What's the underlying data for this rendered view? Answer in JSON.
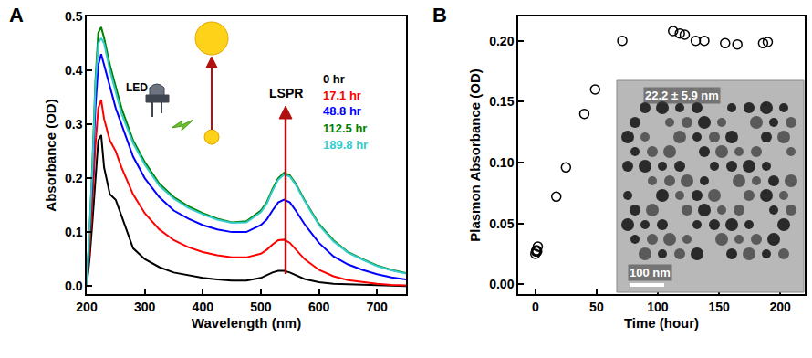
{
  "chart_data": [
    {
      "type": "line",
      "panel": "A",
      "x_label": "Wavelength (nm)",
      "y_label": "Absorbance (OD)",
      "x": [
        200,
        205,
        210,
        215,
        220,
        225,
        230,
        240,
        250,
        260,
        280,
        300,
        325,
        350,
        375,
        400,
        425,
        450,
        475,
        500,
        510,
        520,
        530,
        540,
        550,
        560,
        575,
        600,
        625,
        650,
        675,
        700,
        725,
        750
      ],
      "series": [
        {
          "name": "0 hr",
          "color": "#000000",
          "values": [
            0.0,
            0.05,
            0.12,
            0.2,
            0.27,
            0.28,
            0.22,
            0.17,
            0.16,
            0.13,
            0.07,
            0.05,
            0.035,
            0.025,
            0.02,
            0.015,
            0.012,
            0.01,
            0.01,
            0.015,
            0.02,
            0.025,
            0.028,
            0.028,
            0.025,
            0.02,
            0.013,
            0.007,
            0.004,
            0.003,
            0.002,
            0.001,
            0.001,
            0.0
          ]
        },
        {
          "name": "17.1 hr",
          "color": "#ff0000",
          "values": [
            0.0,
            0.07,
            0.16,
            0.26,
            0.33,
            0.345,
            0.31,
            0.27,
            0.25,
            0.22,
            0.17,
            0.135,
            0.105,
            0.085,
            0.072,
            0.063,
            0.057,
            0.053,
            0.053,
            0.06,
            0.067,
            0.077,
            0.085,
            0.086,
            0.08,
            0.068,
            0.05,
            0.03,
            0.018,
            0.011,
            0.007,
            0.004,
            0.002,
            0.001
          ]
        },
        {
          "name": "48.8 hr",
          "color": "#0000ff",
          "values": [
            0.0,
            0.09,
            0.2,
            0.33,
            0.41,
            0.43,
            0.41,
            0.37,
            0.33,
            0.3,
            0.24,
            0.2,
            0.165,
            0.14,
            0.125,
            0.113,
            0.105,
            0.1,
            0.1,
            0.113,
            0.123,
            0.14,
            0.155,
            0.16,
            0.155,
            0.14,
            0.115,
            0.08,
            0.055,
            0.04,
            0.03,
            0.022,
            0.016,
            0.012
          ]
        },
        {
          "name": "112.5 hr",
          "color": "#008000",
          "values": [
            0.0,
            0.1,
            0.23,
            0.38,
            0.47,
            0.48,
            0.46,
            0.41,
            0.37,
            0.33,
            0.27,
            0.23,
            0.19,
            0.165,
            0.148,
            0.135,
            0.125,
            0.118,
            0.12,
            0.14,
            0.155,
            0.18,
            0.2,
            0.21,
            0.205,
            0.19,
            0.16,
            0.115,
            0.085,
            0.063,
            0.05,
            0.038,
            0.03,
            0.024
          ]
        },
        {
          "name": "189.8 hr",
          "color": "#33cccc",
          "values": [
            0.0,
            0.1,
            0.22,
            0.37,
            0.45,
            0.46,
            0.45,
            0.4,
            0.36,
            0.32,
            0.265,
            0.225,
            0.186,
            0.162,
            0.145,
            0.133,
            0.123,
            0.117,
            0.118,
            0.137,
            0.152,
            0.177,
            0.197,
            0.207,
            0.203,
            0.188,
            0.158,
            0.113,
            0.083,
            0.062,
            0.049,
            0.037,
            0.029,
            0.023
          ]
        }
      ],
      "xlim": [
        200,
        750
      ],
      "ylim": [
        -0.015,
        0.5
      ],
      "xticks": [
        200,
        300,
        400,
        500,
        600,
        700
      ],
      "yticks": [
        {
          "value": 0,
          "label": "0.0"
        },
        0.1,
        0.2,
        0.3,
        0.4,
        0.5
      ],
      "annotations": [
        "LSPR",
        "LED"
      ]
    },
    {
      "type": "scatter",
      "panel": "B",
      "x_label": "Time (hour)",
      "y_label": "Plasmon Absorbance (OD)",
      "x": [
        0,
        0.5,
        1,
        1.5,
        2,
        17.1,
        25,
        40,
        48.8,
        71,
        112.5,
        118,
        122,
        131,
        138,
        155,
        165,
        186,
        189.8
      ],
      "values": [
        0.025,
        0.027,
        0.028,
        0.027,
        0.031,
        0.072,
        0.096,
        0.14,
        0.16,
        0.2,
        0.208,
        0.206,
        0.205,
        0.2,
        0.2,
        0.198,
        0.197,
        0.198,
        0.199
      ],
      "color": "#000000",
      "marker": "open circle",
      "xlim": [
        -14,
        220
      ],
      "ylim": [
        -0.008,
        0.22
      ],
      "xticks": [
        0,
        50,
        100,
        150,
        200
      ],
      "yticks": [
        {
          "value": 0,
          "label": "0.00"
        },
        {
          "value": 0.05,
          "label": "0.05"
        },
        {
          "value": 0.1,
          "label": "0.10"
        },
        {
          "value": 0.15,
          "label": "0.15"
        },
        {
          "value": 0.2,
          "label": "0.20"
        }
      ],
      "annotations": [
        "22.2 ± 5.9 nm",
        "100 nm"
      ]
    }
  ]
}
